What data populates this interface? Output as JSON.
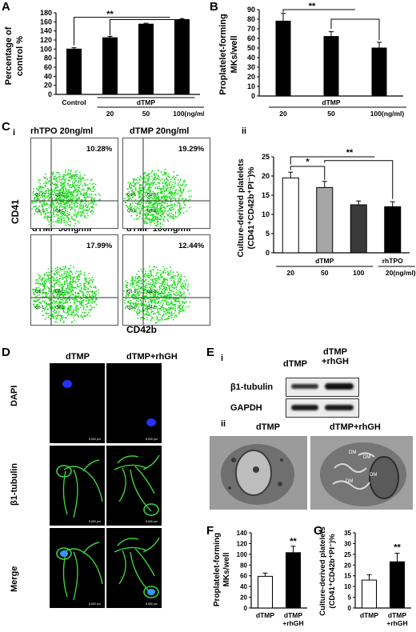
{
  "panels": {
    "A": {
      "letter": "A"
    },
    "B": {
      "letter": "B"
    },
    "C": {
      "letter": "C",
      "sub_i": "i",
      "sub_ii": "ii"
    },
    "D": {
      "letter": "D"
    },
    "E": {
      "letter": "E",
      "sub_i": "i",
      "sub_ii": "ii"
    },
    "F": {
      "letter": "F"
    },
    "G": {
      "letter": "G"
    }
  },
  "flow": {
    "titles": [
      "rhTPO 20ng/ml",
      "dTMP 20ng/ml",
      "dTMP 50ng/ml",
      "dTMP 100ng/ml"
    ],
    "percents": [
      "10.28%",
      "19.29%",
      "17.99%",
      "12.44%"
    ],
    "quadrants": [
      "Q1-1",
      "Q2-1",
      "Q3-1",
      "Q4-1"
    ],
    "y_axis": "CD41",
    "x_axis": "CD42b"
  },
  "confocal": {
    "col_headers": [
      "dTMP",
      "dTMP+rhGH"
    ],
    "row_labels": [
      "DAPI",
      "β1-tubulin",
      "Merge"
    ],
    "scale_label": "5,000 μm"
  },
  "western": {
    "col_headers": [
      "dTMP",
      "dTMP\n+rhGH"
    ],
    "col_header_1": "dTMP",
    "col_header_2a": "dTMP",
    "col_header_2b": "+rhGH",
    "row_labels": [
      "β1-tubulin",
      "GAPDH"
    ]
  },
  "em": {
    "col_headers": [
      "dTMP",
      "dTMP+rhGH"
    ],
    "dm_labels": [
      "DM",
      "DM",
      "DM",
      "DM"
    ]
  },
  "chart_data": [
    {
      "id": "A",
      "type": "bar",
      "categories": [
        "Control",
        "20",
        "50",
        "100(ng/ml)"
      ],
      "group_label": "dTMP",
      "values": [
        100,
        125,
        155,
        165
      ],
      "errors": [
        3,
        3,
        2,
        2
      ],
      "ylabel": "Percentage of control %",
      "ylim": [
        0,
        180
      ],
      "yticks": [
        0,
        20,
        40,
        60,
        80,
        100,
        120,
        140,
        160,
        180
      ],
      "significance": "**",
      "colors": [
        "#000000",
        "#000000",
        "#000000",
        "#000000"
      ]
    },
    {
      "id": "B",
      "type": "bar",
      "categories": [
        "20",
        "50",
        "100(ng/ml)"
      ],
      "group_label": "dTMP",
      "values": [
        78,
        62,
        50
      ],
      "errors": [
        8,
        5,
        6
      ],
      "ylabel": "Proplatelet-forming MKs/well",
      "ylim": [
        0,
        90
      ],
      "yticks": [
        0,
        10,
        20,
        30,
        40,
        50,
        60,
        70,
        80,
        90
      ],
      "significance": "**",
      "colors": [
        "#000000",
        "#000000",
        "#000000"
      ]
    },
    {
      "id": "C-ii",
      "type": "bar",
      "categories": [
        "20",
        "50",
        "100",
        "20(ng/ml)"
      ],
      "group_labels": [
        "dTMP",
        "rhTPO"
      ],
      "values": [
        19.5,
        17,
        12.5,
        12
      ],
      "errors": [
        1.5,
        1.6,
        1,
        1.3
      ],
      "ylabel": "Culture-derived platelets (CD41+CD42b+PI-)%",
      "ylim": [
        0,
        25
      ],
      "yticks": [
        0,
        5,
        10,
        15,
        20,
        25
      ],
      "significance": [
        "*",
        "**"
      ],
      "colors": [
        "#ffffff",
        "#a6a6a6",
        "#3a3a3a",
        "#000000"
      ]
    },
    {
      "id": "F",
      "type": "bar",
      "categories": [
        "dTMP",
        "dTMP +rhGH"
      ],
      "values": [
        59,
        103
      ],
      "errors": [
        6,
        12
      ],
      "ylabel": "Proplatelet-forming MKs/well",
      "ylim": [
        0,
        140
      ],
      "yticks": [
        0,
        20,
        40,
        60,
        80,
        100,
        120,
        140
      ],
      "significance": "**",
      "colors": [
        "#ffffff",
        "#000000"
      ]
    },
    {
      "id": "G",
      "type": "bar",
      "categories": [
        "dTMP",
        "dTMP +rhGH"
      ],
      "values": [
        13,
        21.5
      ],
      "errors": [
        2.5,
        4
      ],
      "ylabel": "Culture-derived platelets (CD41+CD42b+PI-)%",
      "ylim": [
        0,
        35
      ],
      "yticks": [
        0,
        5,
        10,
        15,
        20,
        25,
        30,
        35
      ],
      "significance": "**",
      "colors": [
        "#ffffff",
        "#000000"
      ]
    }
  ]
}
